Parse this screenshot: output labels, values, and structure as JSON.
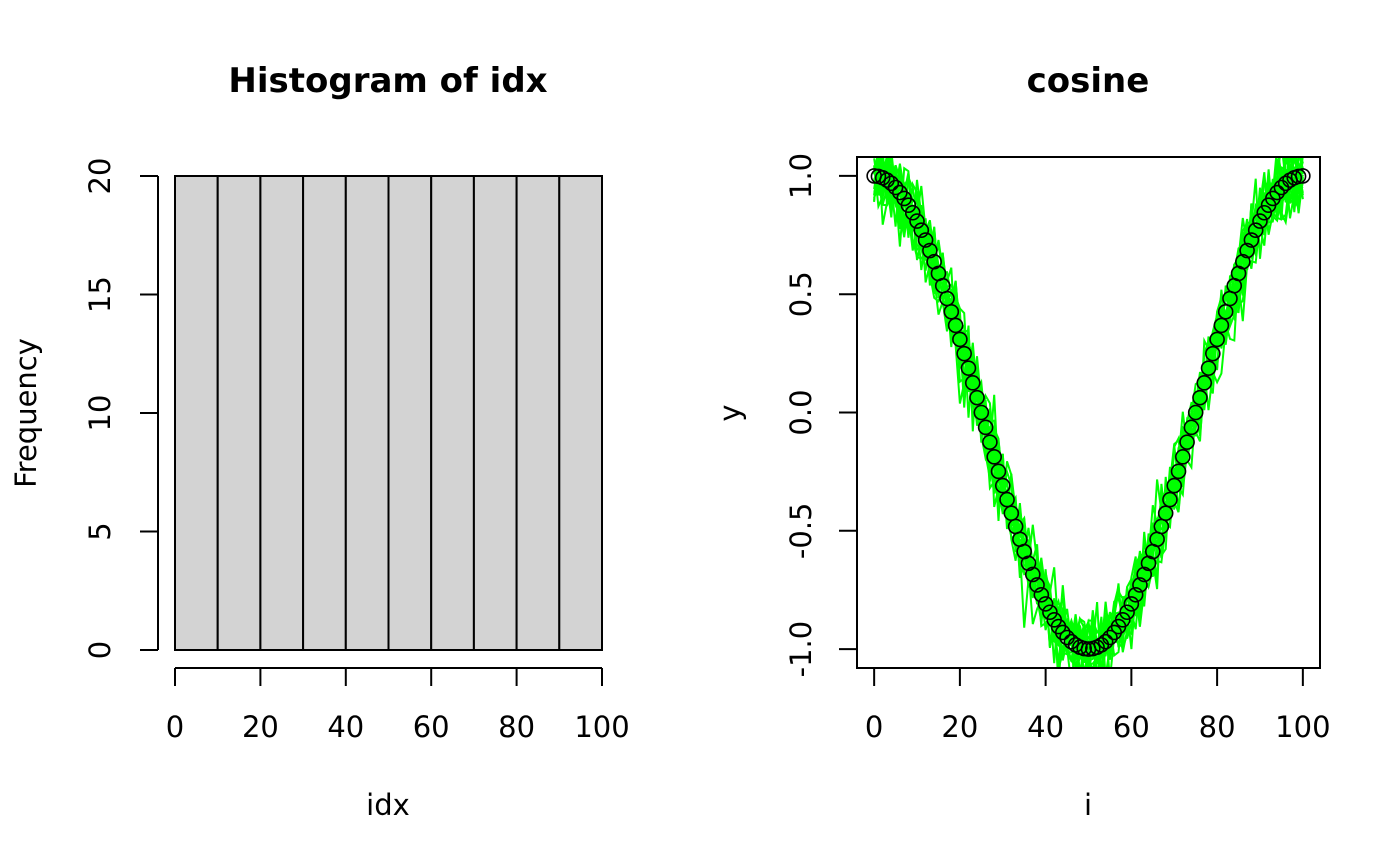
{
  "chart_data": [
    {
      "type": "bar",
      "title": "Histogram of idx",
      "xlabel": "idx",
      "ylabel": "Frequency",
      "bins": [
        [
          0,
          10
        ],
        [
          10,
          20
        ],
        [
          20,
          30
        ],
        [
          30,
          40
        ],
        [
          40,
          50
        ],
        [
          50,
          60
        ],
        [
          60,
          70
        ],
        [
          70,
          80
        ],
        [
          80,
          90
        ],
        [
          90,
          100
        ]
      ],
      "values": [
        20,
        20,
        20,
        20,
        20,
        20,
        20,
        20,
        20,
        20
      ],
      "xlim": [
        0,
        100
      ],
      "ylim": [
        0,
        20
      ],
      "x_ticks": [
        "0",
        "20",
        "40",
        "60",
        "80",
        "100"
      ],
      "y_ticks": [
        "0",
        "5",
        "10",
        "15",
        "20"
      ],
      "bar_color": "#d3d3d3",
      "grid": false
    },
    {
      "type": "line",
      "title": "cosine",
      "xlabel": "i",
      "ylabel": "y",
      "function": "y = cos(2*pi*i/100)",
      "x_range": [
        0,
        100
      ],
      "xlim": [
        -4,
        104
      ],
      "ylim": [
        -1.08,
        1.08
      ],
      "x_ticks": [
        "0",
        "20",
        "40",
        "60",
        "80",
        "100"
      ],
      "y_ticks": [
        "-1.0",
        "-0.5",
        "0.0",
        "0.5",
        "1.0"
      ],
      "series": [
        {
          "kind": "points",
          "marker": "open-circle",
          "color": "#000000",
          "count": 101
        },
        {
          "kind": "noisy-lines",
          "color": "#00ff00",
          "count": 20,
          "noise_sd": 0.08
        }
      ],
      "grid": false
    }
  ]
}
